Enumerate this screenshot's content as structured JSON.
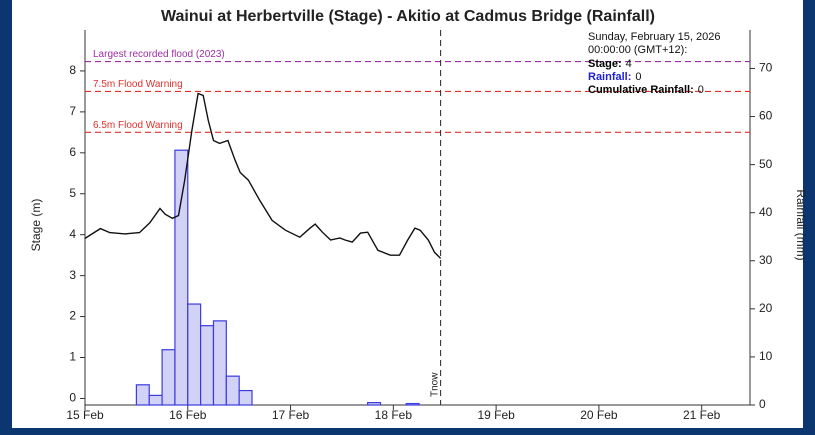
{
  "chart_data": {
    "type": "combo",
    "title": "Wainui at Herbertville (Stage) - Akitio at Cadmus Bridge (Rainfall)",
    "ylabel": "Stage (m)",
    "y2label": "Rainfall (mm)",
    "xlim": [
      0,
      6.47
    ],
    "xticks": [
      {
        "value": 0,
        "label": "15 Feb"
      },
      {
        "value": 1,
        "label": "16 Feb"
      },
      {
        "value": 2,
        "label": "17 Feb"
      },
      {
        "value": 3,
        "label": "18 Feb"
      },
      {
        "value": 4,
        "label": "19 Feb"
      },
      {
        "value": 5,
        "label": "20 Feb"
      },
      {
        "value": 6,
        "label": "21 Feb"
      }
    ],
    "ylim": [
      -0.16,
      9.0
    ],
    "yticks": [
      0,
      1,
      2,
      3,
      4,
      5,
      6,
      7,
      8
    ],
    "y2lim": [
      0,
      78
    ],
    "y2ticks": [
      0,
      10,
      20,
      30,
      40,
      50,
      60,
      70
    ],
    "series": [
      {
        "type": "histogram",
        "axis": "y2",
        "color": "#3b3be0",
        "fill": "#d2d2f7",
        "bins": [
          0,
          0.125,
          0.25,
          0.375,
          0.5,
          0.625,
          0.75,
          0.875,
          1,
          1.125,
          1.25,
          1.375,
          1.5,
          1.625,
          1.75,
          1.875,
          2,
          2.125,
          2.25,
          2.375,
          2.5,
          2.625,
          2.75,
          2.875,
          3,
          3.125,
          3.25,
          3.375,
          3.5
        ],
        "values": [
          0,
          0,
          0,
          0,
          4.2,
          2,
          11.5,
          53,
          21,
          16.5,
          17.5,
          6,
          3,
          0,
          0,
          0,
          0,
          0,
          0,
          0,
          0,
          0,
          0.5,
          0,
          0,
          0.3,
          0,
          0
        ]
      },
      {
        "type": "line",
        "axis": "y",
        "color": "#111111",
        "x": [
          0,
          0.15,
          0.24,
          0.39,
          0.53,
          0.63,
          0.73,
          0.78,
          0.85,
          0.91,
          0.97,
          1.04,
          1.1,
          1.15,
          1.2,
          1.25,
          1.31,
          1.39,
          1.46,
          1.51,
          1.59,
          1.7,
          1.82,
          1.95,
          2.09,
          2.19,
          2.24,
          2.31,
          2.39,
          2.48,
          2.53,
          2.6,
          2.68,
          2.75,
          2.85,
          2.97,
          3.06,
          3.14,
          3.21,
          3.26,
          3.34,
          3.4,
          3.46
        ],
        "values": [
          3.91,
          4.15,
          4.05,
          4.02,
          4.05,
          4.29,
          4.64,
          4.5,
          4.4,
          4.47,
          5.33,
          6.55,
          7.45,
          7.4,
          6.79,
          6.3,
          6.23,
          6.3,
          5.82,
          5.52,
          5.33,
          4.84,
          4.35,
          4.11,
          3.94,
          4.16,
          4.26,
          4.06,
          3.87,
          3.92,
          3.87,
          3.82,
          4.04,
          4.06,
          3.62,
          3.5,
          3.5,
          3.87,
          4.16,
          4.11,
          3.87,
          3.57,
          3.42
        ]
      }
    ],
    "thresholds": [
      {
        "label": "Largest recorded flood (2023)",
        "value": 8.23,
        "color": "#9b2fa3"
      },
      {
        "label": "7.5m Flood Warning",
        "value": 7.5,
        "color": "#e0312f"
      },
      {
        "label": "6.5m Flood Warning",
        "value": 6.5,
        "color": "#e0312f"
      }
    ],
    "now": {
      "x": 3.46,
      "label": "Tnow"
    },
    "tooltip": {
      "date": "Sunday, February 15, 2026",
      "time": "00:00:00 (GMT+12):",
      "items": [
        {
          "label": "Stage:",
          "value": 4,
          "color": "#000000"
        },
        {
          "label": "Rainfall:",
          "value": 0,
          "color": "#1f1fd6"
        },
        {
          "label": "Cumulative Rainfall:",
          "value": 0,
          "color": "#000000"
        }
      ]
    }
  }
}
